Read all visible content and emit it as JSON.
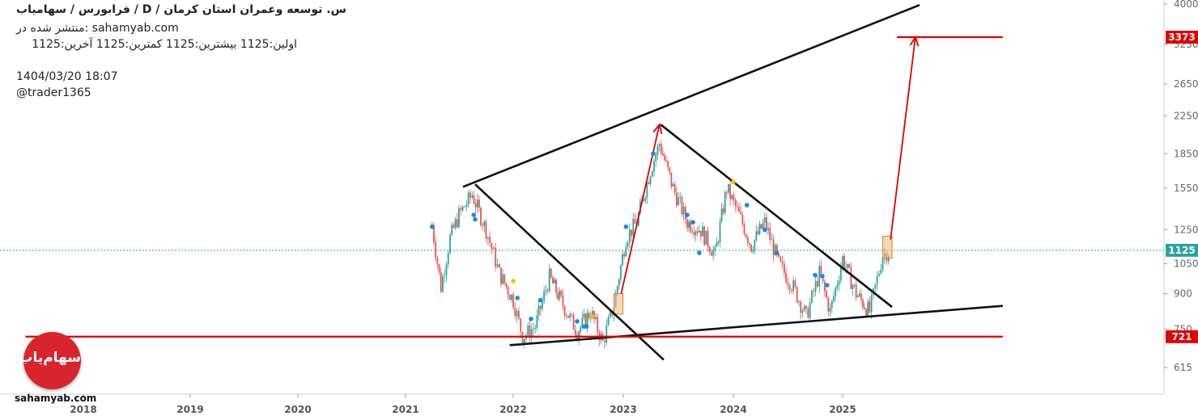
{
  "header": {
    "title": "س. توسعه وعمران استان کرمان /  D  /  فرابورس / سهامیاب",
    "published": "منتشر شده در: sahamyab.com",
    "ohlc": "اولین:1125  بیشترین:1125  کمترین:1125  آخرین:1125",
    "timestamp": "1404/03/20 18:07",
    "author": "@trader1365"
  },
  "watermark": "sahamyab.com",
  "logo": {
    "text": "سهام‌یاب",
    "color": "#d9232d"
  },
  "colors": {
    "up": "#26a69a",
    "down": "#ef5350",
    "trend": "#111111",
    "level": "#e00000",
    "signal_blue": "#1e88e5",
    "signal_yellow": "#f6c000",
    "box": "#f4b67a"
  },
  "chart_data": {
    "type": "candlestick",
    "title": "",
    "xlabel": "",
    "ylabel": "",
    "y_scale": "log",
    "ylim": [
      540,
      4100
    ],
    "xlim": [
      "2017-07-01",
      "2026-06-20"
    ],
    "x_ticks": [
      "2018",
      "2019",
      "2020",
      "2021",
      "2022",
      "2023",
      "2024",
      "2025"
    ],
    "y_ticks": [
      615,
      750,
      900,
      1050,
      1250,
      1550,
      1850,
      2250,
      2650,
      3250,
      4000
    ],
    "price_labels": [
      {
        "value": 3373,
        "label": "3373",
        "color": "#e00000"
      },
      {
        "value": 1125,
        "label": "1125",
        "color": "#26a69a"
      },
      {
        "value": 721,
        "label": "721",
        "color": "#e00000"
      }
    ],
    "series": [
      {
        "name": "",
        "x": [
          "2021-04-01",
          "2021-05-01",
          "2021-06-01",
          "2021-07-01",
          "2021-08-15",
          "2021-10-01",
          "2021-11-15",
          "2022-01-01",
          "2022-02-01",
          "2022-03-15",
          "2022-05-01",
          "2022-06-15",
          "2022-08-01",
          "2022-09-15",
          "2022-10-25",
          "2022-12-01",
          "2023-01-10",
          "2023-02-15",
          "2023-04-01",
          "2023-05-01",
          "2023-06-15",
          "2023-08-01",
          "2023-09-15",
          "2023-11-01",
          "2023-12-10",
          "2024-01-20",
          "2024-03-01",
          "2024-04-15",
          "2024-06-01",
          "2024-07-20",
          "2024-09-01",
          "2024-10-15",
          "2024-11-20",
          "2025-01-01",
          "2025-02-15",
          "2025-04-01",
          "2025-05-15",
          "2025-06-10"
        ],
        "close": [
          1280,
          930,
          1200,
          1350,
          1500,
          1250,
          1000,
          870,
          720,
          760,
          980,
          850,
          740,
          820,
          700,
          850,
          1200,
          1300,
          1700,
          1950,
          1550,
          1300,
          1250,
          1100,
          1550,
          1350,
          1150,
          1300,
          1050,
          930,
          800,
          1000,
          820,
          1080,
          900,
          820,
          1100,
          1125
        ]
      }
    ],
    "lines": [
      {
        "name": "upper-channel",
        "points": [
          [
            "2021-07-15",
            1560
          ],
          [
            "2025-09-15",
            3980
          ]
        ],
        "color": "#111111"
      },
      {
        "name": "lower-channel",
        "points": [
          [
            "2021-12-20",
            690
          ],
          [
            "2026-06-20",
            845
          ]
        ],
        "color": "#111111"
      },
      {
        "name": "downtrend-1",
        "points": [
          [
            "2021-08-25",
            1580
          ],
          [
            "2023-05-15",
            640
          ]
        ],
        "color": "#111111"
      },
      {
        "name": "downtrend-2",
        "points": [
          [
            "2023-05-05",
            2150
          ],
          [
            "2025-06-15",
            840
          ]
        ],
        "color": "#111111"
      },
      {
        "name": "level-3373",
        "points": [
          [
            "2025-07-01",
            3373
          ],
          [
            "2026-06-20",
            3373
          ]
        ],
        "color": "#e00000"
      },
      {
        "name": "level-721",
        "points": [
          [
            "2017-07-01",
            721
          ],
          [
            "2026-06-20",
            721
          ]
        ],
        "color": "#e00000"
      }
    ],
    "arrows": [
      {
        "name": "projection-1",
        "points": [
          [
            "2022-12-25",
            900
          ],
          [
            "2023-05-01",
            2150
          ]
        ],
        "color": "#e00000"
      },
      {
        "name": "projection-2",
        "points": [
          [
            "2025-06-10",
            1190
          ],
          [
            "2025-09-01",
            3373
          ]
        ],
        "color": "#e00000"
      }
    ],
    "boxes": [
      {
        "name": "box-2022",
        "x": [
          "2022-12-01",
          "2022-12-31"
        ],
        "y": [
          810,
          900
        ]
      },
      {
        "name": "box-2025",
        "x": [
          "2025-05-15",
          "2025-06-15"
        ],
        "y": [
          1080,
          1210
        ]
      }
    ],
    "signals_blue": [
      [
        "2021-04-01",
        1270
      ],
      [
        "2021-08-20",
        1350
      ],
      [
        "2021-08-25",
        1320
      ],
      [
        "2022-01-15",
        880
      ],
      [
        "2022-03-01",
        790
      ],
      [
        "2022-04-01",
        870
      ],
      [
        "2022-08-01",
        780
      ],
      [
        "2022-08-25",
        760
      ],
      [
        "2022-09-01",
        760
      ],
      [
        "2023-01-10",
        1270
      ],
      [
        "2023-04-10",
        1850
      ],
      [
        "2023-08-01",
        1350
      ],
      [
        "2023-08-20",
        1300
      ],
      [
        "2023-09-10",
        1110
      ],
      [
        "2024-02-15",
        1420
      ],
      [
        "2024-04-15",
        1250
      ],
      [
        "2024-05-25",
        1110
      ],
      [
        "2024-10-01",
        990
      ],
      [
        "2024-10-25",
        985
      ],
      [
        "2024-11-10",
        940
      ]
    ],
    "signals_yellow": [
      [
        "2022-01-01",
        960
      ],
      [
        "2022-09-20",
        800
      ],
      [
        "2024-01-01",
        1600
      ]
    ]
  }
}
